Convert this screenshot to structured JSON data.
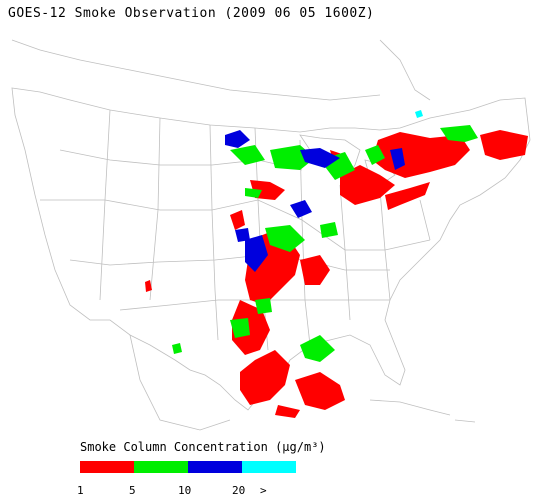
{
  "title": "GOES-12 Smoke Observation (2009 06 05  1600Z)",
  "legend": {
    "title": "Smoke Column Concentration (μg/m³)",
    "bins": [
      {
        "label": "1",
        "color": "#ff0000"
      },
      {
        "label": "5",
        "color": "#00ee00"
      },
      {
        "label": "10",
        "color": "#0000dd"
      },
      {
        "label": "20",
        "color": "#00ffff"
      }
    ],
    "overflow_label": ">"
  },
  "colors": {
    "boundary": "#bfbfbf",
    "background": "#ffffff"
  }
}
